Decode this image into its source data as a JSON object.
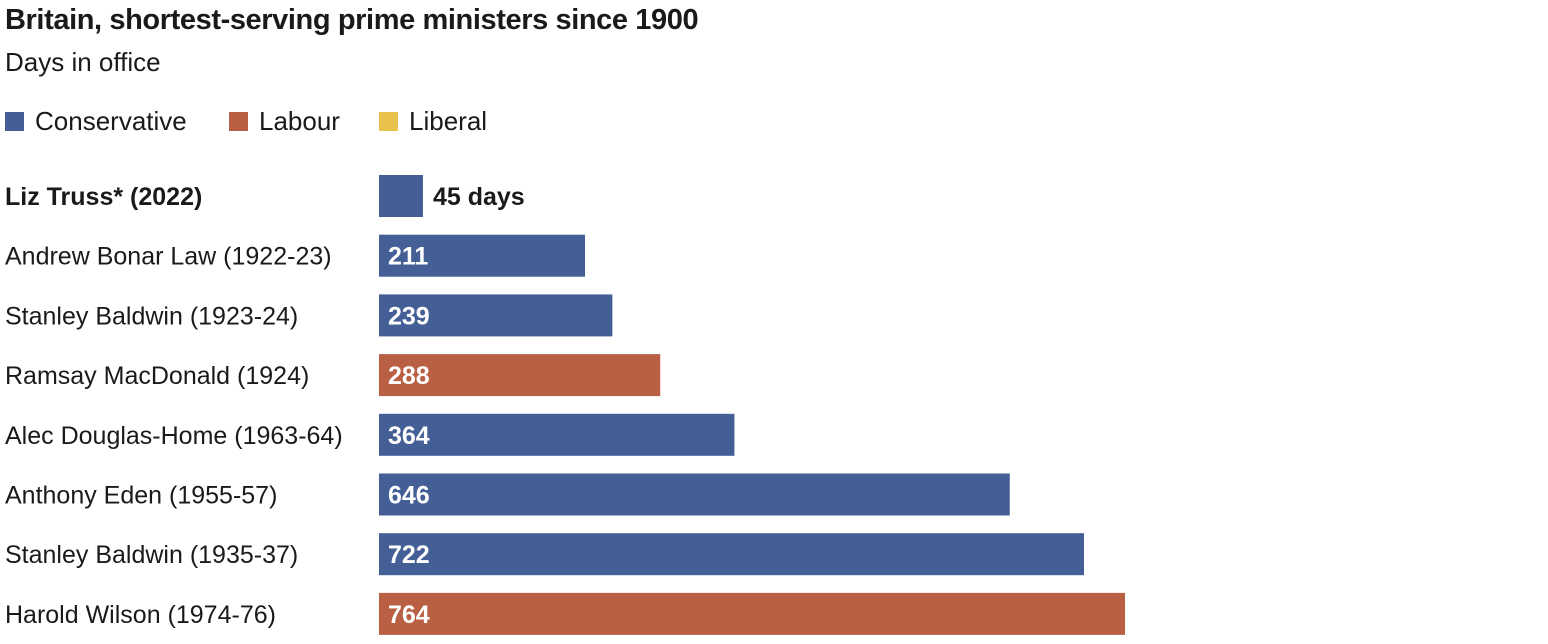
{
  "title": "Britain, shortest-serving prime ministers since 1900",
  "subtitle": "Days in office",
  "colors": {
    "Conservative": "#445f96",
    "Labour": "#b95f43",
    "Liberal": "#e8c24a"
  },
  "legend": [
    {
      "label": "Conservative",
      "color": "#445f96"
    },
    {
      "label": "Labour",
      "color": "#b95f43"
    },
    {
      "label": "Liberal",
      "color": "#e8c24a"
    }
  ],
  "chart_data": {
    "type": "bar",
    "orientation": "horizontal",
    "title": "Britain, shortest-serving prime ministers since 1900",
    "subtitle": "Days in office",
    "xlabel": "",
    "ylabel": "",
    "grid": false,
    "legend_position": "top-left",
    "categories": [
      "Liz Truss* (2022)",
      "Andrew Bonar Law (1922-23)",
      "Stanley Baldwin (1923-24)",
      "Ramsay MacDonald (1924)",
      "Alec Douglas-Home (1963-64)",
      "Anthony Eden (1955-57)",
      "Stanley Baldwin (1935-37)",
      "Harold Wilson (1974-76)"
    ],
    "values": [
      45,
      211,
      239,
      288,
      364,
      646,
      722,
      764
    ],
    "value_labels": [
      "45 days",
      "211",
      "239",
      "288",
      "364",
      "646",
      "722",
      "764"
    ],
    "parties": [
      "Conservative",
      "Conservative",
      "Conservative",
      "Labour",
      "Conservative",
      "Conservative",
      "Conservative",
      "Labour"
    ],
    "xlim": [
      0,
      764
    ]
  }
}
